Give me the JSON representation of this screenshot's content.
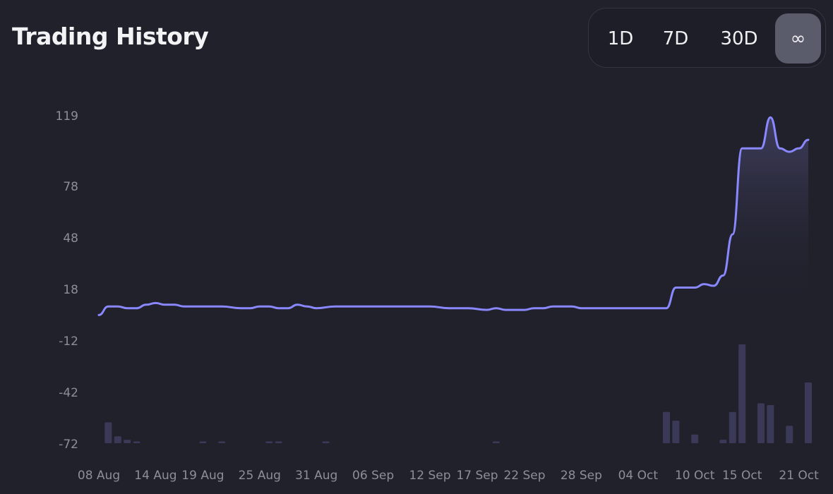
{
  "header": {
    "title": "Trading History"
  },
  "range": {
    "buttons": [
      "1D",
      "7D",
      "30D",
      "∞"
    ],
    "active_index": 3
  },
  "colors": {
    "background": "#20212b",
    "line": "#8a88ff",
    "bar": "#3a3a58",
    "tick_text": "#8d8e98"
  },
  "chart_data": {
    "type": "line",
    "title": "Trading History",
    "xlabel": "",
    "ylabel": "",
    "y_ticks": [
      119,
      78,
      48,
      18,
      -12,
      -42,
      -72
    ],
    "x_ticks": [
      "08 Aug",
      "14 Aug",
      "19 Aug",
      "25 Aug",
      "31 Aug",
      "06 Sep",
      "12 Sep",
      "17 Sep",
      "22 Sep",
      "28 Sep",
      "04 Oct",
      "10 Oct",
      "15 Oct",
      "21 Oct"
    ],
    "x_start": "08 Aug",
    "x_end": "22 Oct",
    "legend": "none",
    "grid": false,
    "series": [
      {
        "x": [
          "08 Aug",
          "09 Aug",
          "10 Aug",
          "11 Aug",
          "12 Aug",
          "13 Aug",
          "14 Aug",
          "15 Aug",
          "16 Aug",
          "17 Aug",
          "18 Aug",
          "19 Aug",
          "21 Aug",
          "23 Aug",
          "24 Aug",
          "25 Aug",
          "26 Aug",
          "27 Aug",
          "28 Aug",
          "29 Aug",
          "30 Aug",
          "31 Aug",
          "02 Sep",
          "04 Sep",
          "06 Sep",
          "08 Sep",
          "10 Sep",
          "12 Sep",
          "14 Sep",
          "16 Sep",
          "18 Sep",
          "19 Sep",
          "20 Sep",
          "21 Sep",
          "22 Sep",
          "23 Sep",
          "24 Sep",
          "25 Sep",
          "26 Sep",
          "27 Sep",
          "28 Sep",
          "30 Sep",
          "04 Oct",
          "06 Oct",
          "07 Oct",
          "08 Oct",
          "09 Oct",
          "10 Oct",
          "11 Oct",
          "12 Oct",
          "13 Oct",
          "14 Oct",
          "15 Oct",
          "16 Oct",
          "17 Oct",
          "18 Oct",
          "19 Oct",
          "20 Oct",
          "21 Oct",
          "22 Oct"
        ],
        "values": [
          3,
          8,
          8,
          7,
          7,
          9,
          10,
          9,
          9,
          8,
          8,
          8,
          8,
          7,
          7,
          8,
          8,
          7,
          7,
          9,
          8,
          7,
          8,
          8,
          8,
          8,
          8,
          8,
          7,
          7,
          6,
          7,
          6,
          6,
          6,
          7,
          7,
          8,
          8,
          8,
          7,
          7,
          7,
          7,
          7,
          19,
          19,
          19,
          21,
          20,
          26,
          50,
          100,
          100,
          100,
          118,
          100,
          98,
          100,
          105
        ]
      }
    ],
    "volume_bars": {
      "x": [
        "09 Aug",
        "10 Aug",
        "11 Aug",
        "12 Aug",
        "19 Aug",
        "21 Aug",
        "26 Aug",
        "27 Aug",
        "01 Sep",
        "19 Sep",
        "07 Oct",
        "08 Oct",
        "10 Oct",
        "13 Oct",
        "14 Oct",
        "15 Oct",
        "17 Oct",
        "18 Oct",
        "20 Oct",
        "22 Oct"
      ],
      "values": [
        12,
        4,
        2,
        1,
        1,
        1,
        1,
        1,
        1,
        1,
        18,
        13,
        5,
        2,
        18,
        57,
        23,
        22,
        10,
        35
      ]
    }
  }
}
